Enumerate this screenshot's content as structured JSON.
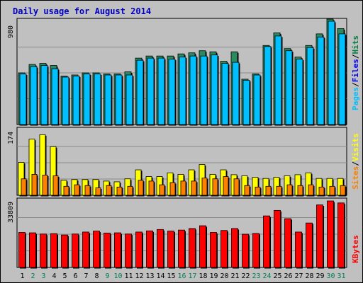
{
  "chart_data": [
    {
      "type": "bar",
      "title": "Daily usage for August 2014",
      "panel": "top",
      "y_max_label": "980",
      "ylim": [
        0,
        980
      ],
      "grid": true,
      "categories": [
        "1",
        "2",
        "3",
        "4",
        "5",
        "6",
        "7",
        "8",
        "9",
        "10",
        "11",
        "12",
        "13",
        "14",
        "15",
        "16",
        "17",
        "18",
        "19",
        "20",
        "21",
        "22",
        "23",
        "24",
        "25",
        "26",
        "27",
        "28",
        "29",
        "30",
        "31"
      ],
      "weekend_days": [
        "2",
        "3",
        "9",
        "10",
        "16",
        "17",
        "23",
        "24",
        "30",
        "31"
      ],
      "legend": [
        {
          "name": "Pages",
          "color": "#00c0ff"
        },
        {
          "name": "Files",
          "color": "#0000ff"
        },
        {
          "name": "Hits",
          "color": "#008040"
        }
      ],
      "legend_separator": "/",
      "series": [
        {
          "name": "Hits",
          "color": "#2a8a60",
          "values": [
            490,
            570,
            580,
            560,
            460,
            470,
            490,
            490,
            480,
            480,
            500,
            630,
            650,
            650,
            650,
            670,
            680,
            700,
            690,
            600,
            690,
            430,
            480,
            750,
            870,
            720,
            640,
            750,
            860,
            1000,
            910
          ]
        },
        {
          "name": "Pages",
          "color": "#00c0ff",
          "values": [
            480,
            550,
            560,
            530,
            450,
            460,
            480,
            480,
            470,
            470,
            470,
            610,
            630,
            630,
            620,
            640,
            650,
            650,
            660,
            580,
            590,
            420,
            470,
            740,
            840,
            700,
            620,
            730,
            830,
            980,
            860
          ]
        }
      ]
    },
    {
      "type": "bar",
      "panel": "middle",
      "y_max_label": "174",
      "ylim": [
        0,
        174
      ],
      "grid": true,
      "legend": [
        {
          "name": "Sites",
          "color": "#ff8000"
        },
        {
          "name": "Visits",
          "color": "#ffff00"
        }
      ],
      "legend_separator": "/",
      "series": [
        {
          "name": "Visits",
          "color": "#ffff00",
          "values": [
            88,
            150,
            162,
            130,
            40,
            42,
            42,
            42,
            38,
            36,
            44,
            68,
            50,
            50,
            60,
            56,
            68,
            82,
            56,
            68,
            55,
            52,
            48,
            45,
            48,
            52,
            55,
            60,
            45,
            45,
            45
          ]
        },
        {
          "name": "Sites",
          "color": "#ff8000",
          "values": [
            44,
            56,
            54,
            52,
            24,
            28,
            26,
            20,
            26,
            22,
            24,
            40,
            38,
            28,
            34,
            38,
            38,
            46,
            44,
            50,
            44,
            26,
            22,
            24,
            24,
            28,
            26,
            28,
            22,
            24,
            26
          ]
        }
      ]
    },
    {
      "type": "bar",
      "panel": "bottom",
      "y_max_label": "33809",
      "ylim": [
        0,
        33809
      ],
      "grid": true,
      "legend": [
        {
          "name": "KBytes",
          "color": "#ff0000"
        }
      ],
      "series": [
        {
          "name": "KBytes",
          "color": "#ff0000",
          "values": [
            17800,
            17600,
            17000,
            17200,
            16500,
            17000,
            18000,
            18500,
            17500,
            17600,
            17000,
            18000,
            18600,
            19300,
            18500,
            19000,
            19800,
            21200,
            17800,
            18800,
            19800,
            16900,
            17300,
            26200,
            29000,
            24800,
            18000,
            22600,
            31800,
            33800,
            32800
          ]
        }
      ]
    }
  ]
}
